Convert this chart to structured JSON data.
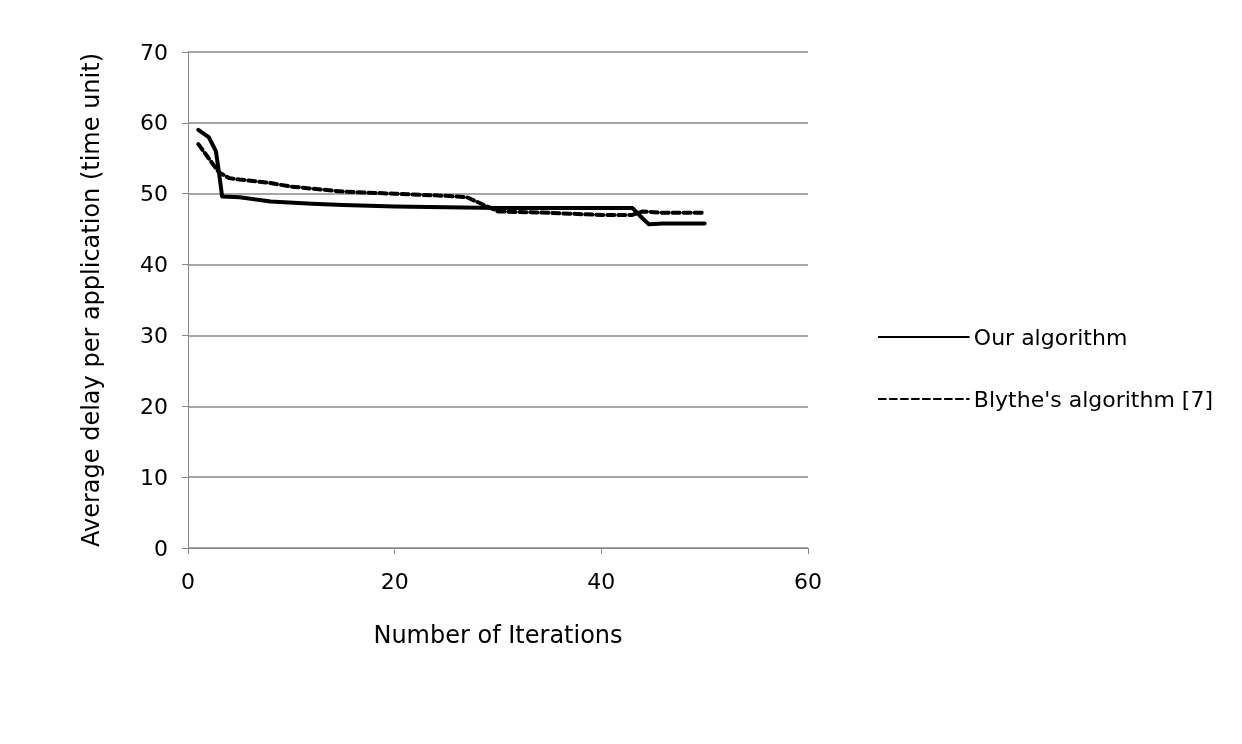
{
  "chart_data": {
    "type": "line",
    "xlabel": "Number of Iterations",
    "ylabel": "Average delay per application (time unit)",
    "xlim": [
      0,
      60
    ],
    "xticks": [
      0,
      20,
      40,
      60
    ],
    "ylim": [
      0,
      70
    ],
    "yticks": [
      0,
      10,
      20,
      30,
      40,
      50,
      60,
      70
    ],
    "grid": "y",
    "legend": "right",
    "marker": "none",
    "series": [
      {
        "name": "Our algorithm",
        "color": "#000000",
        "line_style": "solid",
        "x": [
          1,
          2,
          2.7,
          3,
          3.3,
          5,
          8,
          12,
          15,
          20,
          30,
          40,
          43,
          44,
          44.6,
          46,
          50
        ],
        "values": [
          59,
          58,
          56,
          53,
          49.6,
          49.5,
          48.9,
          48.6,
          48.4,
          48.2,
          48,
          48,
          48,
          46.5,
          45.7,
          45.8,
          45.8
        ]
      },
      {
        "name": "Blythe's algorithm [7]",
        "color": "#000000",
        "line_style": "dashed",
        "x": [
          1,
          2,
          2.5,
          3,
          4,
          5,
          8,
          10,
          15,
          20,
          25,
          27,
          30,
          35,
          40,
          43,
          44,
          46,
          50
        ],
        "values": [
          57,
          55,
          54,
          53,
          52.2,
          52,
          51.5,
          51,
          50.3,
          50,
          49.7,
          49.5,
          47.5,
          47.3,
          47,
          47,
          47.5,
          47.3,
          47.3
        ]
      }
    ]
  }
}
